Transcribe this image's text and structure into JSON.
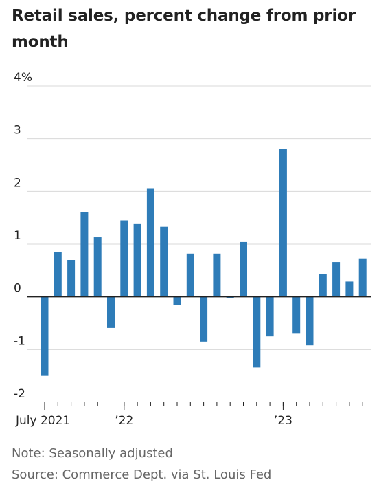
{
  "title": "Retail sales, percent change from prior month",
  "notes": {
    "note": "Note: Seasonally adjusted",
    "source": "Source: Commerce Dept. via St. Louis Fed"
  },
  "chart_data": {
    "type": "bar",
    "title": "Retail sales, percent change from prior month",
    "xlabel": "",
    "ylabel": "",
    "ylim": [
      -2,
      4
    ],
    "y_ticks": [
      -2,
      -1,
      0,
      1,
      2,
      3,
      4
    ],
    "y_tick_labels": [
      "-2",
      "-1",
      "0",
      "1",
      "2",
      "3",
      "4%"
    ],
    "x_tick_labels": [
      {
        "category": "2021-07",
        "label": "July 2021"
      },
      {
        "category": "2022-01",
        "label": "’22"
      },
      {
        "category": "2023-01",
        "label": "’23"
      }
    ],
    "grid": true,
    "bar_color": "#2e7cb8",
    "categories": [
      "2021-07",
      "2021-08",
      "2021-09",
      "2021-10",
      "2021-11",
      "2021-12",
      "2022-01",
      "2022-02",
      "2022-03",
      "2022-04",
      "2022-05",
      "2022-06",
      "2022-07",
      "2022-08",
      "2022-09",
      "2022-10",
      "2022-11",
      "2022-12",
      "2023-01",
      "2023-02",
      "2023-03",
      "2023-04",
      "2023-05",
      "2023-06",
      "2023-07"
    ],
    "values": [
      -1.5,
      0.85,
      0.7,
      1.6,
      1.13,
      -0.59,
      1.45,
      1.38,
      2.05,
      1.33,
      -0.16,
      0.82,
      -0.85,
      0.82,
      -0.02,
      1.04,
      -1.34,
      -0.75,
      2.8,
      -0.7,
      -0.92,
      0.43,
      0.66,
      0.29,
      0.73
    ]
  }
}
